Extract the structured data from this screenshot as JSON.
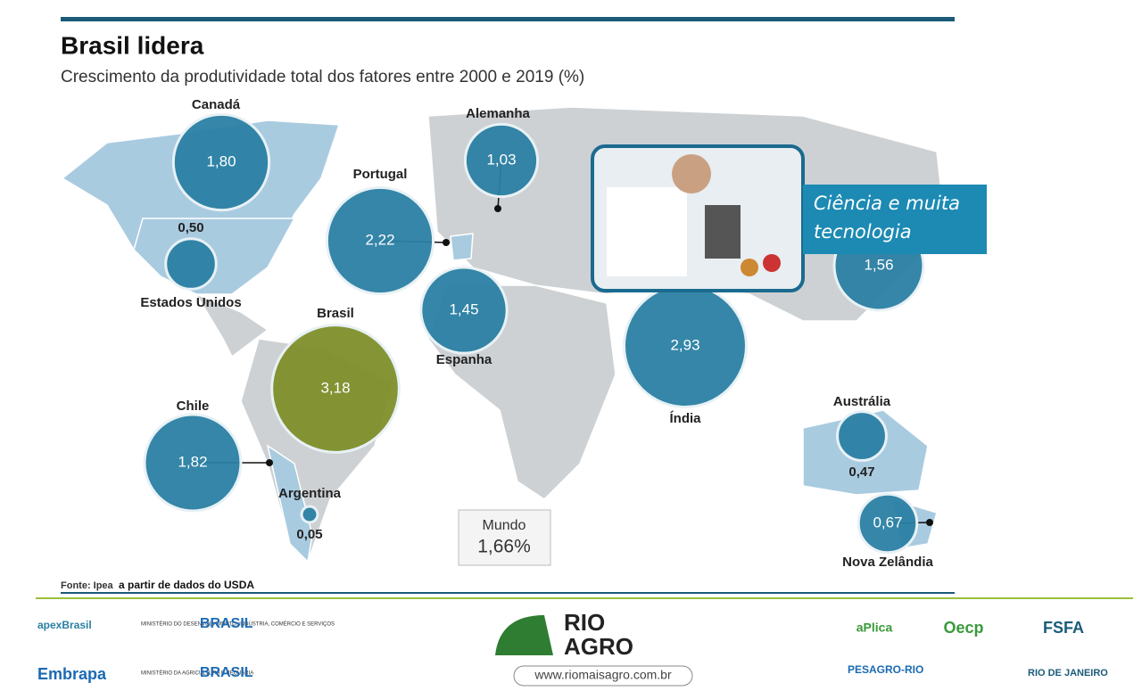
{
  "chart_data": {
    "type": "bubble",
    "title": "Brasil lidera",
    "subtitle": "Crescimento da produtividade total dos fatores entre 2000 e 2019 (%)",
    "categories": [
      "Canadá",
      "Estados Unidos",
      "Portugal",
      "Alemanha",
      "Espanha",
      "Brasil",
      "Chile",
      "Argentina",
      "Índia",
      null,
      "Austrália",
      "Nova Zelândia"
    ],
    "values": [
      1.8,
      0.5,
      2.22,
      1.03,
      1.45,
      3.18,
      1.82,
      0.05,
      2.93,
      1.56,
      0.47,
      0.67
    ],
    "value_labels": [
      "1,80",
      "0,50",
      "2,22",
      "1,03",
      "1,45",
      "3,18",
      "1,82",
      "0,05",
      "2,93",
      "1,56",
      "0,47",
      "0,67"
    ],
    "color": "#2a7fa3",
    "highlight_color": "#7e8f2b",
    "world": {
      "label": "Mundo",
      "value": "1,66%"
    },
    "photo_caption": "Ciência e muita tecnologia",
    "source": "Fonte: Ipea",
    "source_note": "a partir de dados do USDA"
  },
  "footer": {
    "logos": [
      "apexBrasil",
      "MINISTÉRIO DO DESENVOLVIMENTO, INDÚSTRIA, COMÉRCIO E SERVIÇOS",
      "BRASIL",
      "Embrapa",
      "MINISTÉRIO DA AGRICULTURA E PECUÁRIA",
      "BRASIL",
      "RIO",
      "AGRO",
      "www.riomaisagro.com.br",
      "aPlica",
      "Oecp",
      "FSFA",
      "PESAGRO-RIO",
      "RIO DE JANEIRO"
    ]
  }
}
